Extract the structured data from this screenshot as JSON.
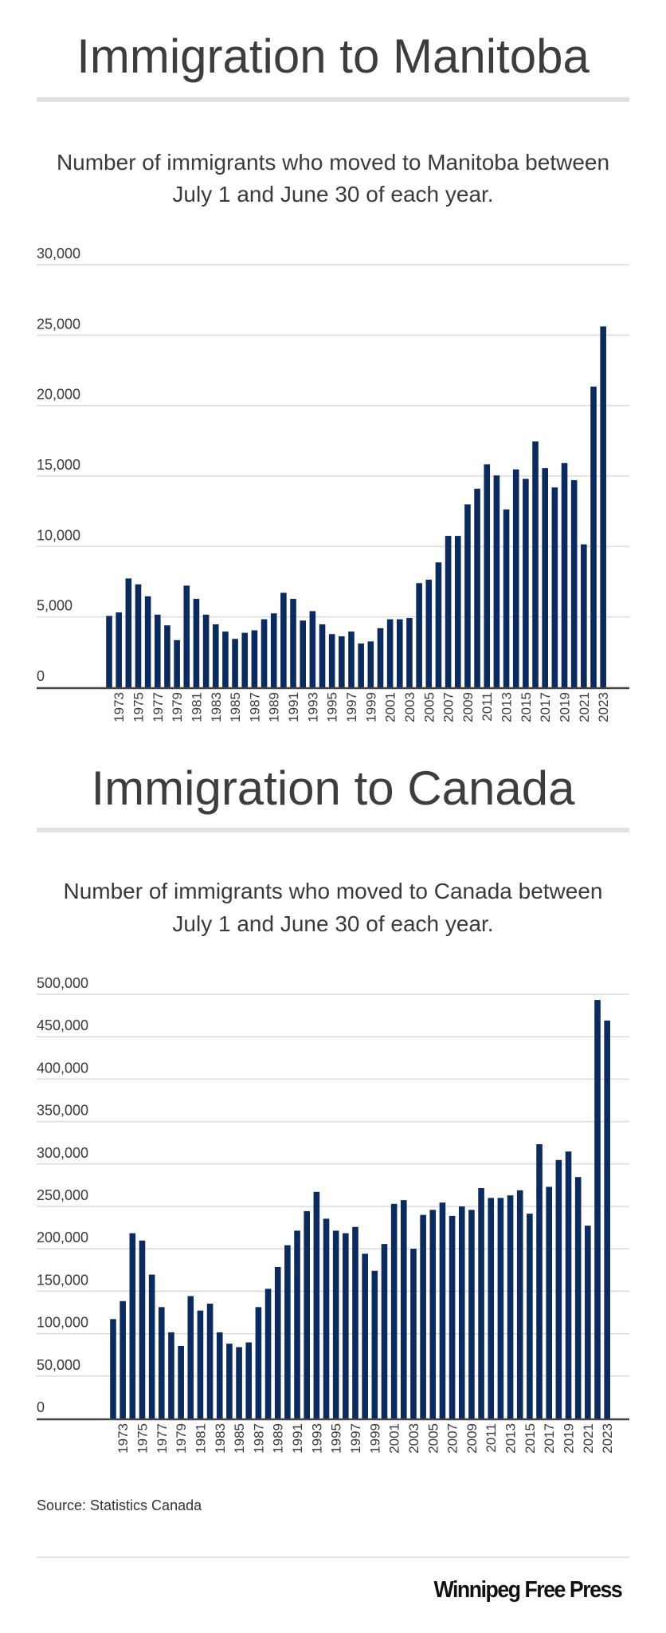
{
  "colors": {
    "bar": "#0b2a5e",
    "grid": "#dcdcdc",
    "axis": "#444444",
    "text": "#3a3a3a"
  },
  "chart_data": [
    {
      "type": "bar",
      "title": "Immigration to Manitoba",
      "subtitle_lines": [
        "Number of immigrants who moved to Manitoba between",
        "July 1 and June 30 of each year."
      ],
      "xlabel": "",
      "ylabel": "",
      "ylim": [
        0,
        30000
      ],
      "yticks": [
        0,
        5000,
        10000,
        15000,
        20000,
        25000,
        30000
      ],
      "ytick_labels": [
        "0",
        "5,000",
        "10,000",
        "15,000",
        "20,000",
        "25,000",
        "30,000"
      ],
      "grid": true,
      "categories": [
        1972,
        1973,
        1974,
        1975,
        1976,
        1977,
        1978,
        1979,
        1980,
        1981,
        1982,
        1983,
        1984,
        1985,
        1986,
        1987,
        1988,
        1989,
        1990,
        1991,
        1992,
        1993,
        1994,
        1995,
        1996,
        1997,
        1998,
        1999,
        2000,
        2001,
        2002,
        2003,
        2004,
        2005,
        2006,
        2007,
        2008,
        2009,
        2010,
        2011,
        2012,
        2013,
        2014,
        2015,
        2016,
        2017,
        2018,
        2019,
        2020,
        2021,
        2022,
        2023
      ],
      "xtick_labels": [
        "1973",
        "1975",
        "1977",
        "1979",
        "1981",
        "1983",
        "1985",
        "1987",
        "1989",
        "1991",
        "1993",
        "1995",
        "1997",
        "1999",
        "2001",
        "2003",
        "2005",
        "2007",
        "2009",
        "2011",
        "2013",
        "2015",
        "2017",
        "2019",
        "2021",
        "2023"
      ],
      "values": [
        5070,
        5320,
        7730,
        7310,
        6460,
        5160,
        4400,
        3350,
        7220,
        6280,
        5160,
        4470,
        3960,
        3440,
        3870,
        4050,
        4830,
        5250,
        6710,
        6280,
        4740,
        5410,
        4470,
        3780,
        3620,
        3960,
        3110,
        3260,
        4200,
        4830,
        4830,
        4920,
        7400,
        7640,
        8870,
        10750,
        10750,
        12990,
        14100,
        15830,
        15040,
        12630,
        15470,
        14800,
        17460,
        15560,
        14190,
        15920,
        14710,
        10150,
        21350,
        25620
      ]
    },
    {
      "type": "bar",
      "title": "Immigration to Canada",
      "subtitle_lines": [
        "Number of immigrants who moved to Canada between",
        "July 1 and June 30 of each year."
      ],
      "xlabel": "",
      "ylabel": "",
      "ylim": [
        0,
        500000
      ],
      "yticks": [
        0,
        50000,
        100000,
        150000,
        200000,
        250000,
        300000,
        350000,
        400000,
        450000,
        500000
      ],
      "ytick_labels": [
        "0",
        "50,000",
        "100,000",
        "150,000",
        "200,000",
        "250,000",
        "300,000",
        "350,000",
        "400,000",
        "450,000",
        "500,000"
      ],
      "grid": true,
      "categories": [
        1972,
        1973,
        1974,
        1975,
        1976,
        1977,
        1978,
        1979,
        1980,
        1981,
        1982,
        1983,
        1984,
        1985,
        1986,
        1987,
        1988,
        1989,
        1990,
        1991,
        1992,
        1993,
        1994,
        1995,
        1996,
        1997,
        1998,
        1999,
        2000,
        2001,
        2002,
        2003,
        2004,
        2005,
        2006,
        2007,
        2008,
        2009,
        2010,
        2011,
        2012,
        2013,
        2014,
        2015,
        2016,
        2017,
        2018,
        2019,
        2020,
        2021,
        2022,
        2023
      ],
      "xtick_labels": [
        "1973",
        "1975",
        "1977",
        "1979",
        "1981",
        "1983",
        "1985",
        "1987",
        "1989",
        "1991",
        "1993",
        "1995",
        "1997",
        "1999",
        "2001",
        "2003",
        "2005",
        "2007",
        "2009",
        "2011",
        "2013",
        "2015",
        "2017",
        "2019",
        "2021",
        "2023"
      ],
      "values": [
        117200,
        138400,
        218400,
        209800,
        169600,
        131300,
        101600,
        85600,
        144300,
        127200,
        135400,
        101600,
        88200,
        84100,
        89700,
        131300,
        152900,
        178600,
        204200,
        221400,
        244400,
        267100,
        235500,
        221400,
        218400,
        225800,
        194200,
        174100,
        205700,
        253000,
        257400,
        200100,
        240000,
        245900,
        254500,
        238800,
        250000,
        245900,
        271600,
        260000,
        260000,
        263000,
        269000,
        241400,
        323300,
        273100,
        304700,
        314700,
        284600,
        227300,
        493300,
        469100
      ]
    }
  ],
  "footer": {
    "source": "Source: Statistics Canada",
    "logo": "Winnipeg Free Press"
  }
}
